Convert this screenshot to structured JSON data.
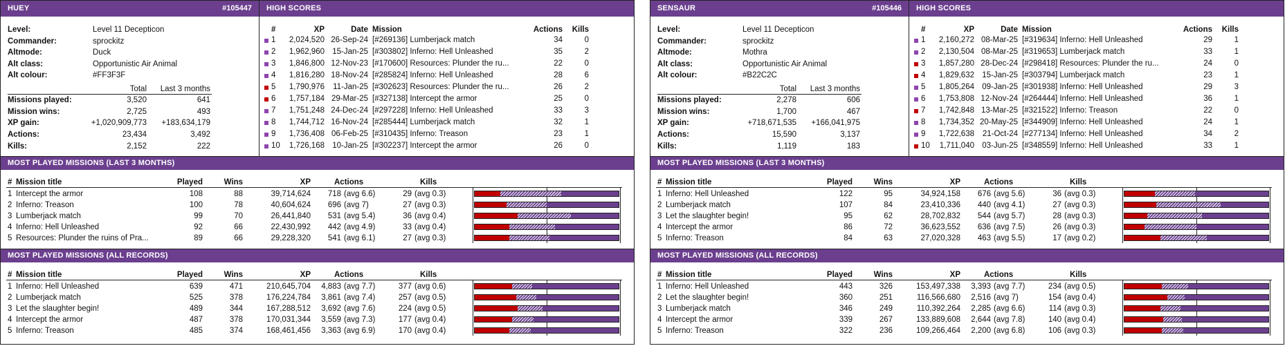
{
  "colors": {
    "header_bg": "#6b3f8e",
    "win_red": "#c00000",
    "bar_purple": "#6b3f8e"
  },
  "cards": [
    {
      "name": "HUEY",
      "id": "#105447",
      "high_scores_title": "HIGH SCORES",
      "profile": [
        {
          "label": "Level:",
          "value": "Level 11 Decepticon"
        },
        {
          "label": "Commander:",
          "value": "sprockitz"
        },
        {
          "label": "Altmode:",
          "value": "Duck"
        },
        {
          "label": "Alt class:",
          "value": "Opportunistic Air Animal"
        },
        {
          "label": "Alt colour:",
          "value": "#FF3F3F"
        }
      ],
      "stats_headers": {
        "total": "Total",
        "last3": "Last 3 months"
      },
      "stats": [
        {
          "label": "Missions played:",
          "total": "3,520",
          "last3": "641"
        },
        {
          "label": "Mission wins:",
          "total": "2,725",
          "last3": "493"
        },
        {
          "label": "XP gain:",
          "total": "+1,020,909,773",
          "last3": "+183,634,179"
        },
        {
          "label": "Actions:",
          "total": "23,434",
          "last3": "3,492"
        },
        {
          "label": "Kills:",
          "total": "2,152",
          "last3": "222"
        }
      ],
      "hs_headers": {
        "rank": "#",
        "xp": "XP",
        "date": "Date",
        "mission": "Mission",
        "actions": "Actions",
        "kills": "Kills"
      },
      "high_scores": [
        {
          "rank": "1",
          "xp": "2,024,520",
          "date": "26-Sep-24",
          "mission": "[#269136] Lumberjack match",
          "actions": "34",
          "kills": "0",
          "color": "#8e44ad"
        },
        {
          "rank": "2",
          "xp": "1,962,960",
          "date": "15-Jan-25",
          "mission": "[#303802] Inferno: Hell Unleashed",
          "actions": "35",
          "kills": "2",
          "color": "#8e44ad"
        },
        {
          "rank": "3",
          "xp": "1,846,800",
          "date": "12-Nov-23",
          "mission": "[#170600] Resources: Plunder the ru...",
          "actions": "22",
          "kills": "0",
          "color": "#8e44ad"
        },
        {
          "rank": "4",
          "xp": "1,816,280",
          "date": "18-Nov-24",
          "mission": "[#285824] Inferno: Hell Unleashed",
          "actions": "28",
          "kills": "6",
          "color": "#8e44ad"
        },
        {
          "rank": "5",
          "xp": "1,790,976",
          "date": "11-Jan-25",
          "mission": "[#302623] Resources: Plunder the ru...",
          "actions": "26",
          "kills": "2",
          "color": "#c00000"
        },
        {
          "rank": "6",
          "xp": "1,757,184",
          "date": "29-Mar-25",
          "mission": "[#327138] Intercept the armor",
          "actions": "25",
          "kills": "0",
          "color": "#c00000"
        },
        {
          "rank": "7",
          "xp": "1,751,248",
          "date": "24-Dec-24",
          "mission": "[#297228] Inferno: Hell Unleashed",
          "actions": "33",
          "kills": "3",
          "color": "#8e44ad"
        },
        {
          "rank": "8",
          "xp": "1,744,712",
          "date": "16-Nov-24",
          "mission": "[#285444] Lumberjack match",
          "actions": "32",
          "kills": "1",
          "color": "#8e44ad"
        },
        {
          "rank": "9",
          "xp": "1,736,408",
          "date": "06-Feb-25",
          "mission": "[#310435] Inferno: Treason",
          "actions": "23",
          "kills": "1",
          "color": "#8e44ad"
        },
        {
          "rank": "10",
          "xp": "1,726,168",
          "date": "10-Jan-25",
          "mission": "[#302237] Intercept the armor",
          "actions": "26",
          "kills": "0",
          "color": "#8e44ad"
        }
      ],
      "mission_tables": [
        {
          "title": "MOST PLAYED MISSIONS (LAST 3 MONTHS)",
          "headers": {
            "rank": "#",
            "title": "Mission title",
            "played": "Played",
            "wins": "Wins",
            "xp": "XP",
            "actions": "Actions",
            "kills": "Kills"
          },
          "rows": [
            {
              "rank": "1",
              "title": "Intercept the armor",
              "played": "108",
              "wins": "88",
              "xp": "39,714,624",
              "actions": "718",
              "actions_avg": "(avg 6.6)",
              "kills": "29",
              "kills_avg": "(avg 0.3)",
              "bar": [
                0.18,
                0.42
              ]
            },
            {
              "rank": "2",
              "title": "Inferno: Treason",
              "played": "100",
              "wins": "78",
              "xp": "40,604,624",
              "actions": "696",
              "actions_avg": "(avg 7)",
              "kills": "27",
              "kills_avg": "(avg 0.3)",
              "bar": [
                0.22,
                0.28
              ]
            },
            {
              "rank": "3",
              "title": "Lumberjack match",
              "played": "99",
              "wins": "70",
              "xp": "26,441,840",
              "actions": "531",
              "actions_avg": "(avg 5.4)",
              "kills": "36",
              "kills_avg": "(avg 0.4)",
              "bar": [
                0.3,
                0.37
              ]
            },
            {
              "rank": "4",
              "title": "Inferno: Hell Unleashed",
              "played": "92",
              "wins": "66",
              "xp": "22,430,992",
              "actions": "442",
              "actions_avg": "(avg 4.9)",
              "kills": "33",
              "kills_avg": "(avg 0.4)",
              "bar": [
                0.24,
                0.32
              ]
            },
            {
              "rank": "5",
              "title": "Resources: Plunder the ruins of Pra...",
              "played": "89",
              "wins": "66",
              "xp": "29,228,320",
              "actions": "541",
              "actions_avg": "(avg 6.1)",
              "kills": "27",
              "kills_avg": "(avg 0.3)",
              "bar": [
                0.24,
                0.28
              ]
            }
          ]
        },
        {
          "title": "MOST PLAYED MISSIONS (ALL RECORDS)",
          "headers": {
            "rank": "#",
            "title": "Mission title",
            "played": "Played",
            "wins": "Wins",
            "xp": "XP",
            "actions": "Actions",
            "kills": "Kills"
          },
          "rows": [
            {
              "rank": "1",
              "title": "Inferno: Hell Unleashed",
              "played": "639",
              "wins": "471",
              "xp": "210,645,704",
              "actions": "4,883",
              "actions_avg": "(avg 7.7)",
              "kills": "377",
              "kills_avg": "(avg 0.6)",
              "bar": [
                0.26,
                0.14
              ]
            },
            {
              "rank": "2",
              "title": "Lumberjack match",
              "played": "525",
              "wins": "378",
              "xp": "176,224,784",
              "actions": "3,861",
              "actions_avg": "(avg 7.4)",
              "kills": "257",
              "kills_avg": "(avg 0.5)",
              "bar": [
                0.29,
                0.14
              ]
            },
            {
              "rank": "3",
              "title": "Let the slaughter begin!",
              "played": "489",
              "wins": "344",
              "xp": "167,288,512",
              "actions": "3,692",
              "actions_avg": "(avg 7.6)",
              "kills": "224",
              "kills_avg": "(avg 0.5)",
              "bar": [
                0.3,
                0.17
              ]
            },
            {
              "rank": "4",
              "title": "Intercept the armor",
              "played": "487",
              "wins": "378",
              "xp": "170,031,344",
              "actions": "3,559",
              "actions_avg": "(avg 7.3)",
              "kills": "177",
              "kills_avg": "(avg 0.4)",
              "bar": [
                0.26,
                0.15
              ]
            },
            {
              "rank": "5",
              "title": "Inferno: Treason",
              "played": "485",
              "wins": "374",
              "xp": "168,461,456",
              "actions": "3,363",
              "actions_avg": "(avg 6.9)",
              "kills": "170",
              "kills_avg": "(avg 0.4)",
              "bar": [
                0.24,
                0.15
              ]
            }
          ]
        }
      ]
    },
    {
      "name": "SENSAUR",
      "id": "#105446",
      "high_scores_title": "HIGH SCORES",
      "profile": [
        {
          "label": "Level:",
          "value": "Level 11 Decepticon"
        },
        {
          "label": "Commander:",
          "value": "sprockitz"
        },
        {
          "label": "Altmode:",
          "value": "Mothra"
        },
        {
          "label": "Alt class:",
          "value": "Opportunistic Air Animal"
        },
        {
          "label": "Alt colour:",
          "value": "#B22C2C"
        }
      ],
      "stats_headers": {
        "total": "Total",
        "last3": "Last 3 months"
      },
      "stats": [
        {
          "label": "Missions played:",
          "total": "2,278",
          "last3": "606"
        },
        {
          "label": "Mission wins:",
          "total": "1,700",
          "last3": "467"
        },
        {
          "label": "XP gain:",
          "total": "+718,671,535",
          "last3": "+166,041,975"
        },
        {
          "label": "Actions:",
          "total": "15,590",
          "last3": "3,137"
        },
        {
          "label": "Kills:",
          "total": "1,119",
          "last3": "183"
        }
      ],
      "hs_headers": {
        "rank": "#",
        "xp": "XP",
        "date": "Date",
        "mission": "Mission",
        "actions": "Actions",
        "kills": "Kills"
      },
      "high_scores": [
        {
          "rank": "1",
          "xp": "2,160,272",
          "date": "08-Mar-25",
          "mission": "[#319634] Inferno: Hell Unleashed",
          "actions": "29",
          "kills": "1",
          "color": "#8e44ad"
        },
        {
          "rank": "2",
          "xp": "2,130,504",
          "date": "08-Mar-25",
          "mission": "[#319653] Lumberjack match",
          "actions": "33",
          "kills": "1",
          "color": "#8e44ad"
        },
        {
          "rank": "3",
          "xp": "1,857,280",
          "date": "28-Dec-24",
          "mission": "[#298418] Resources: Plunder the ru...",
          "actions": "24",
          "kills": "0",
          "color": "#c00000"
        },
        {
          "rank": "4",
          "xp": "1,829,632",
          "date": "15-Jan-25",
          "mission": "[#303794] Lumberjack match",
          "actions": "23",
          "kills": "1",
          "color": "#c00000"
        },
        {
          "rank": "5",
          "xp": "1,805,264",
          "date": "09-Jan-25",
          "mission": "[#301938] Inferno: Hell Unleashed",
          "actions": "29",
          "kills": "3",
          "color": "#8e44ad"
        },
        {
          "rank": "6",
          "xp": "1,753,808",
          "date": "12-Nov-24",
          "mission": "[#264444] Inferno: Hell Unleashed",
          "actions": "36",
          "kills": "1",
          "color": "#8e44ad"
        },
        {
          "rank": "7",
          "xp": "1,742,848",
          "date": "13-Mar-25",
          "mission": "[#321522] Inferno: Treason",
          "actions": "22",
          "kills": "0",
          "color": "#c00000"
        },
        {
          "rank": "8",
          "xp": "1,734,352",
          "date": "20-May-25",
          "mission": "[#344909] Inferno: Hell Unleashed",
          "actions": "24",
          "kills": "1",
          "color": "#8e44ad"
        },
        {
          "rank": "9",
          "xp": "1,722,638",
          "date": "21-Oct-24",
          "mission": "[#277134] Inferno: Hell Unleashed",
          "actions": "34",
          "kills": "2",
          "color": "#8e44ad"
        },
        {
          "rank": "10",
          "xp": "1,711,040",
          "date": "03-Jun-25",
          "mission": "[#348559] Inferno: Hell Unleashed",
          "actions": "33",
          "kills": "1",
          "color": "#c00000"
        }
      ],
      "mission_tables": [
        {
          "title": "MOST PLAYED MISSIONS (LAST 3 MONTHS)",
          "headers": {
            "rank": "#",
            "title": "Mission title",
            "played": "Played",
            "wins": "Wins",
            "xp": "XP",
            "actions": "Actions",
            "kills": "Kills"
          },
          "rows": [
            {
              "rank": "1",
              "title": "Inferno: Hell Unleashed",
              "played": "122",
              "wins": "95",
              "xp": "34,924,158",
              "actions": "676",
              "actions_avg": "(avg 5.6)",
              "kills": "36",
              "kills_avg": "(avg 0.3)",
              "bar": [
                0.21,
                0.28
              ]
            },
            {
              "rank": "2",
              "title": "Lumberjack match",
              "played": "107",
              "wins": "84",
              "xp": "23,410,336",
              "actions": "440",
              "actions_avg": "(avg 4.1)",
              "kills": "27",
              "kills_avg": "(avg 0.3)",
              "bar": [
                0.22,
                0.45
              ]
            },
            {
              "rank": "3",
              "title": "Let the slaughter begin!",
              "played": "95",
              "wins": "62",
              "xp": "28,702,832",
              "actions": "544",
              "actions_avg": "(avg 5.7)",
              "kills": "28",
              "kills_avg": "(avg 0.3)",
              "bar": [
                0.16,
                0.38
              ]
            },
            {
              "rank": "4",
              "title": "Intercept the armor",
              "played": "86",
              "wins": "72",
              "xp": "36,623,552",
              "actions": "636",
              "actions_avg": "(avg 7.5)",
              "kills": "26",
              "kills_avg": "(avg 0.3)",
              "bar": [
                0.14,
                0.36
              ]
            },
            {
              "rank": "5",
              "title": "Inferno: Treason",
              "played": "84",
              "wins": "63",
              "xp": "27,020,328",
              "actions": "463",
              "actions_avg": "(avg 5.5)",
              "kills": "17",
              "kills_avg": "(avg 0.2)",
              "bar": [
                0.25,
                0.32
              ]
            }
          ]
        },
        {
          "title": "MOST PLAYED MISSIONS (ALL RECORDS)",
          "headers": {
            "rank": "#",
            "title": "Mission title",
            "played": "Played",
            "wins": "Wins",
            "xp": "XP",
            "actions": "Actions",
            "kills": "Kills"
          },
          "rows": [
            {
              "rank": "1",
              "title": "Inferno: Hell Unleashed",
              "played": "443",
              "wins": "326",
              "xp": "153,497,338",
              "actions": "3,393",
              "actions_avg": "(avg 7.7)",
              "kills": "234",
              "kills_avg": "(avg 0.5)",
              "bar": [
                0.26,
                0.18
              ]
            },
            {
              "rank": "2",
              "title": "Let the slaughter begin!",
              "played": "360",
              "wins": "251",
              "xp": "116,566,680",
              "actions": "2,516",
              "actions_avg": "(avg 7)",
              "kills": "154",
              "kills_avg": "(avg 0.4)",
              "bar": [
                0.3,
                0.12
              ]
            },
            {
              "rank": "3",
              "title": "Lumberjack match",
              "played": "346",
              "wins": "249",
              "xp": "110,392,264",
              "actions": "2,285",
              "actions_avg": "(avg 6.6)",
              "kills": "114",
              "kills_avg": "(avg 0.3)",
              "bar": [
                0.25,
                0.14
              ]
            },
            {
              "rank": "4",
              "title": "Intercept the armor",
              "played": "339",
              "wins": "267",
              "xp": "133,889,608",
              "actions": "2,644",
              "actions_avg": "(avg 7.8)",
              "kills": "140",
              "kills_avg": "(avg 0.4)",
              "bar": [
                0.27,
                0.13
              ]
            },
            {
              "rank": "5",
              "title": "Inferno: Treason",
              "played": "322",
              "wins": "236",
              "xp": "109,266,464",
              "actions": "2,200",
              "actions_avg": "(avg 6.8)",
              "kills": "106",
              "kills_avg": "(avg 0.3)",
              "bar": [
                0.26,
                0.15
              ]
            }
          ]
        }
      ]
    }
  ]
}
